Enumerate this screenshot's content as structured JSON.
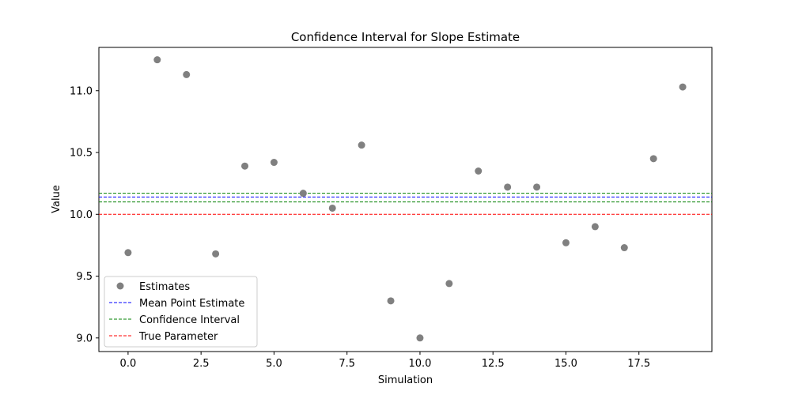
{
  "chart_data": {
    "type": "scatter",
    "title": "Confidence Interval for Slope Estimate",
    "xlabel": "Simulation",
    "ylabel": "Value",
    "xlim": [
      -1,
      20
    ],
    "ylim": [
      8.89,
      11.35
    ],
    "x_ticks": [
      0.0,
      2.5,
      5.0,
      7.5,
      10.0,
      12.5,
      15.0,
      17.5
    ],
    "x_tick_labels": [
      "0.0",
      "2.5",
      "5.0",
      "7.5",
      "10.0",
      "12.5",
      "15.0",
      "17.5"
    ],
    "y_ticks": [
      9.0,
      9.5,
      10.0,
      10.5,
      11.0
    ],
    "y_tick_labels": [
      "9.0",
      "9.5",
      "10.0",
      "10.5",
      "11.0"
    ],
    "grid": false,
    "legend_position": "lower-left",
    "series": [
      {
        "name": "Estimates",
        "kind": "scatter",
        "color": "#808080",
        "x": [
          0,
          1,
          2,
          3,
          4,
          5,
          6,
          7,
          8,
          9,
          10,
          11,
          12,
          13,
          14,
          15,
          16,
          17,
          18,
          19
        ],
        "y": [
          9.69,
          11.25,
          11.13,
          9.68,
          10.39,
          10.42,
          10.17,
          10.05,
          10.56,
          9.3,
          9.0,
          9.44,
          10.35,
          10.22,
          10.22,
          9.77,
          9.9,
          9.73,
          10.45,
          11.03
        ]
      },
      {
        "name": "Mean Point Estimate",
        "kind": "hline",
        "style": "dashed",
        "color": "#0000ff",
        "y": 10.14
      },
      {
        "name": "Confidence Interval",
        "kind": "hline",
        "style": "dashed",
        "color": "#008000",
        "y": [
          10.1,
          10.17
        ]
      },
      {
        "name": "True Parameter",
        "kind": "hline",
        "style": "dashed",
        "color": "#ff0000",
        "y": 10.0
      }
    ]
  }
}
